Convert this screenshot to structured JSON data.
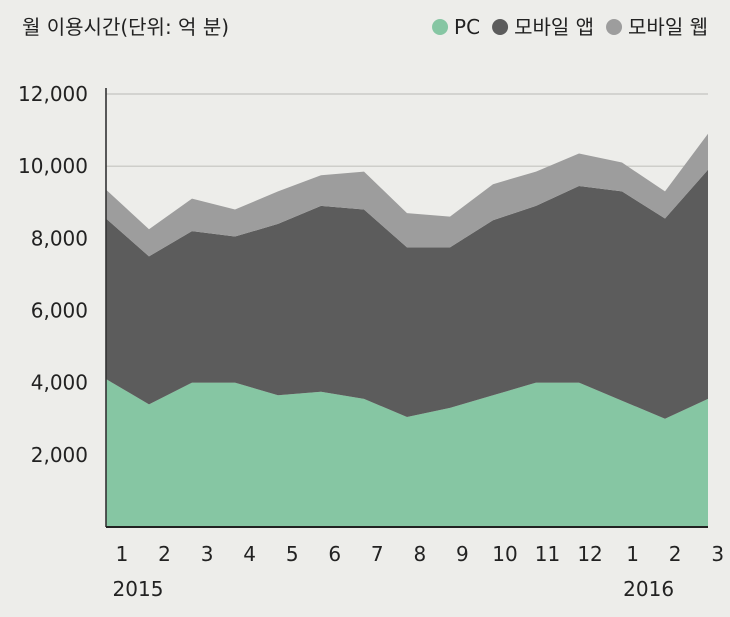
{
  "chart_data": {
    "type": "area",
    "stacked": true,
    "title": "월 이용시간(단위: 억 분)",
    "xlabel": "",
    "ylabel": "",
    "ylim": [
      0,
      12000
    ],
    "yticks": [
      2000,
      4000,
      6000,
      8000,
      10000,
      12000
    ],
    "ytick_labels": [
      "2,000",
      "4,000",
      "6,000",
      "8,000",
      "10,000",
      "12,000"
    ],
    "categories": [
      "1",
      "2",
      "3",
      "4",
      "5",
      "6",
      "7",
      "8",
      "9",
      "10",
      "11",
      "12",
      "1",
      "2",
      "3"
    ],
    "year_labels": [
      {
        "label": "2015",
        "index": 0
      },
      {
        "label": "2016",
        "index": 12
      }
    ],
    "grid": true,
    "legend_position": "top-right",
    "series": [
      {
        "name": "PC",
        "color": "#86c6a3",
        "values": [
          4100,
          3400,
          4000,
          4000,
          3650,
          3750,
          3550,
          3050,
          3300,
          3650,
          4000,
          4000,
          3500,
          3000,
          3550
        ]
      },
      {
        "name": "모바일 앱",
        "color": "#5c5c5c",
        "values": [
          4450,
          4100,
          4200,
          4050,
          4750,
          5150,
          5250,
          4700,
          4450,
          4850,
          4900,
          5450,
          5800,
          5550,
          6350
        ]
      },
      {
        "name": "모바일 웹",
        "color": "#9d9d9d",
        "values": [
          800,
          750,
          900,
          750,
          900,
          850,
          1050,
          950,
          850,
          1000,
          950,
          900,
          800,
          750,
          1000
        ]
      }
    ]
  }
}
